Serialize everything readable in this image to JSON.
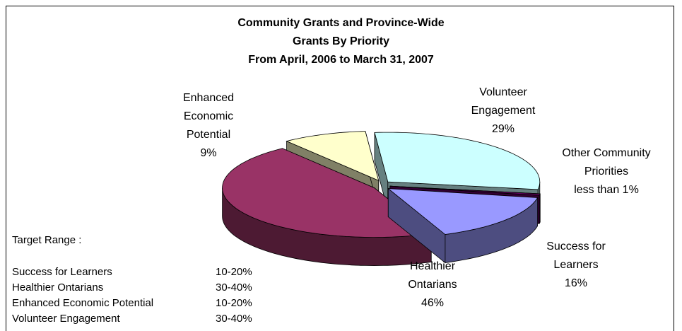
{
  "chart_data": {
    "type": "pie3d",
    "title": [
      "Community Grants and Province-Wide",
      "Grants By Priority",
      "From April, 2006 to March 31, 2007"
    ],
    "categories": [
      "Volunteer Engagement",
      "Other Community Priorities",
      "Success for Learners",
      "Healthier Ontarians",
      "Enhanced Economic Potential"
    ],
    "values": [
      29,
      0.5,
      16,
      46,
      9
    ],
    "value_labels": [
      "29%",
      "less than 1%",
      "16%",
      "46%",
      "9%"
    ],
    "colors": [
      "#ccffff",
      "#660066",
      "#9999ff",
      "#993366",
      "#ffffcc"
    ],
    "target_range": {
      "title": "Target Range :",
      "rows": [
        [
          "Success for Learners",
          "10-20%"
        ],
        [
          "Healthier Ontarians",
          "30-40%"
        ],
        [
          "Enhanced Economic Potential",
          "10-20%"
        ],
        [
          "Volunteer Engagement",
          "30-40%"
        ]
      ]
    }
  }
}
